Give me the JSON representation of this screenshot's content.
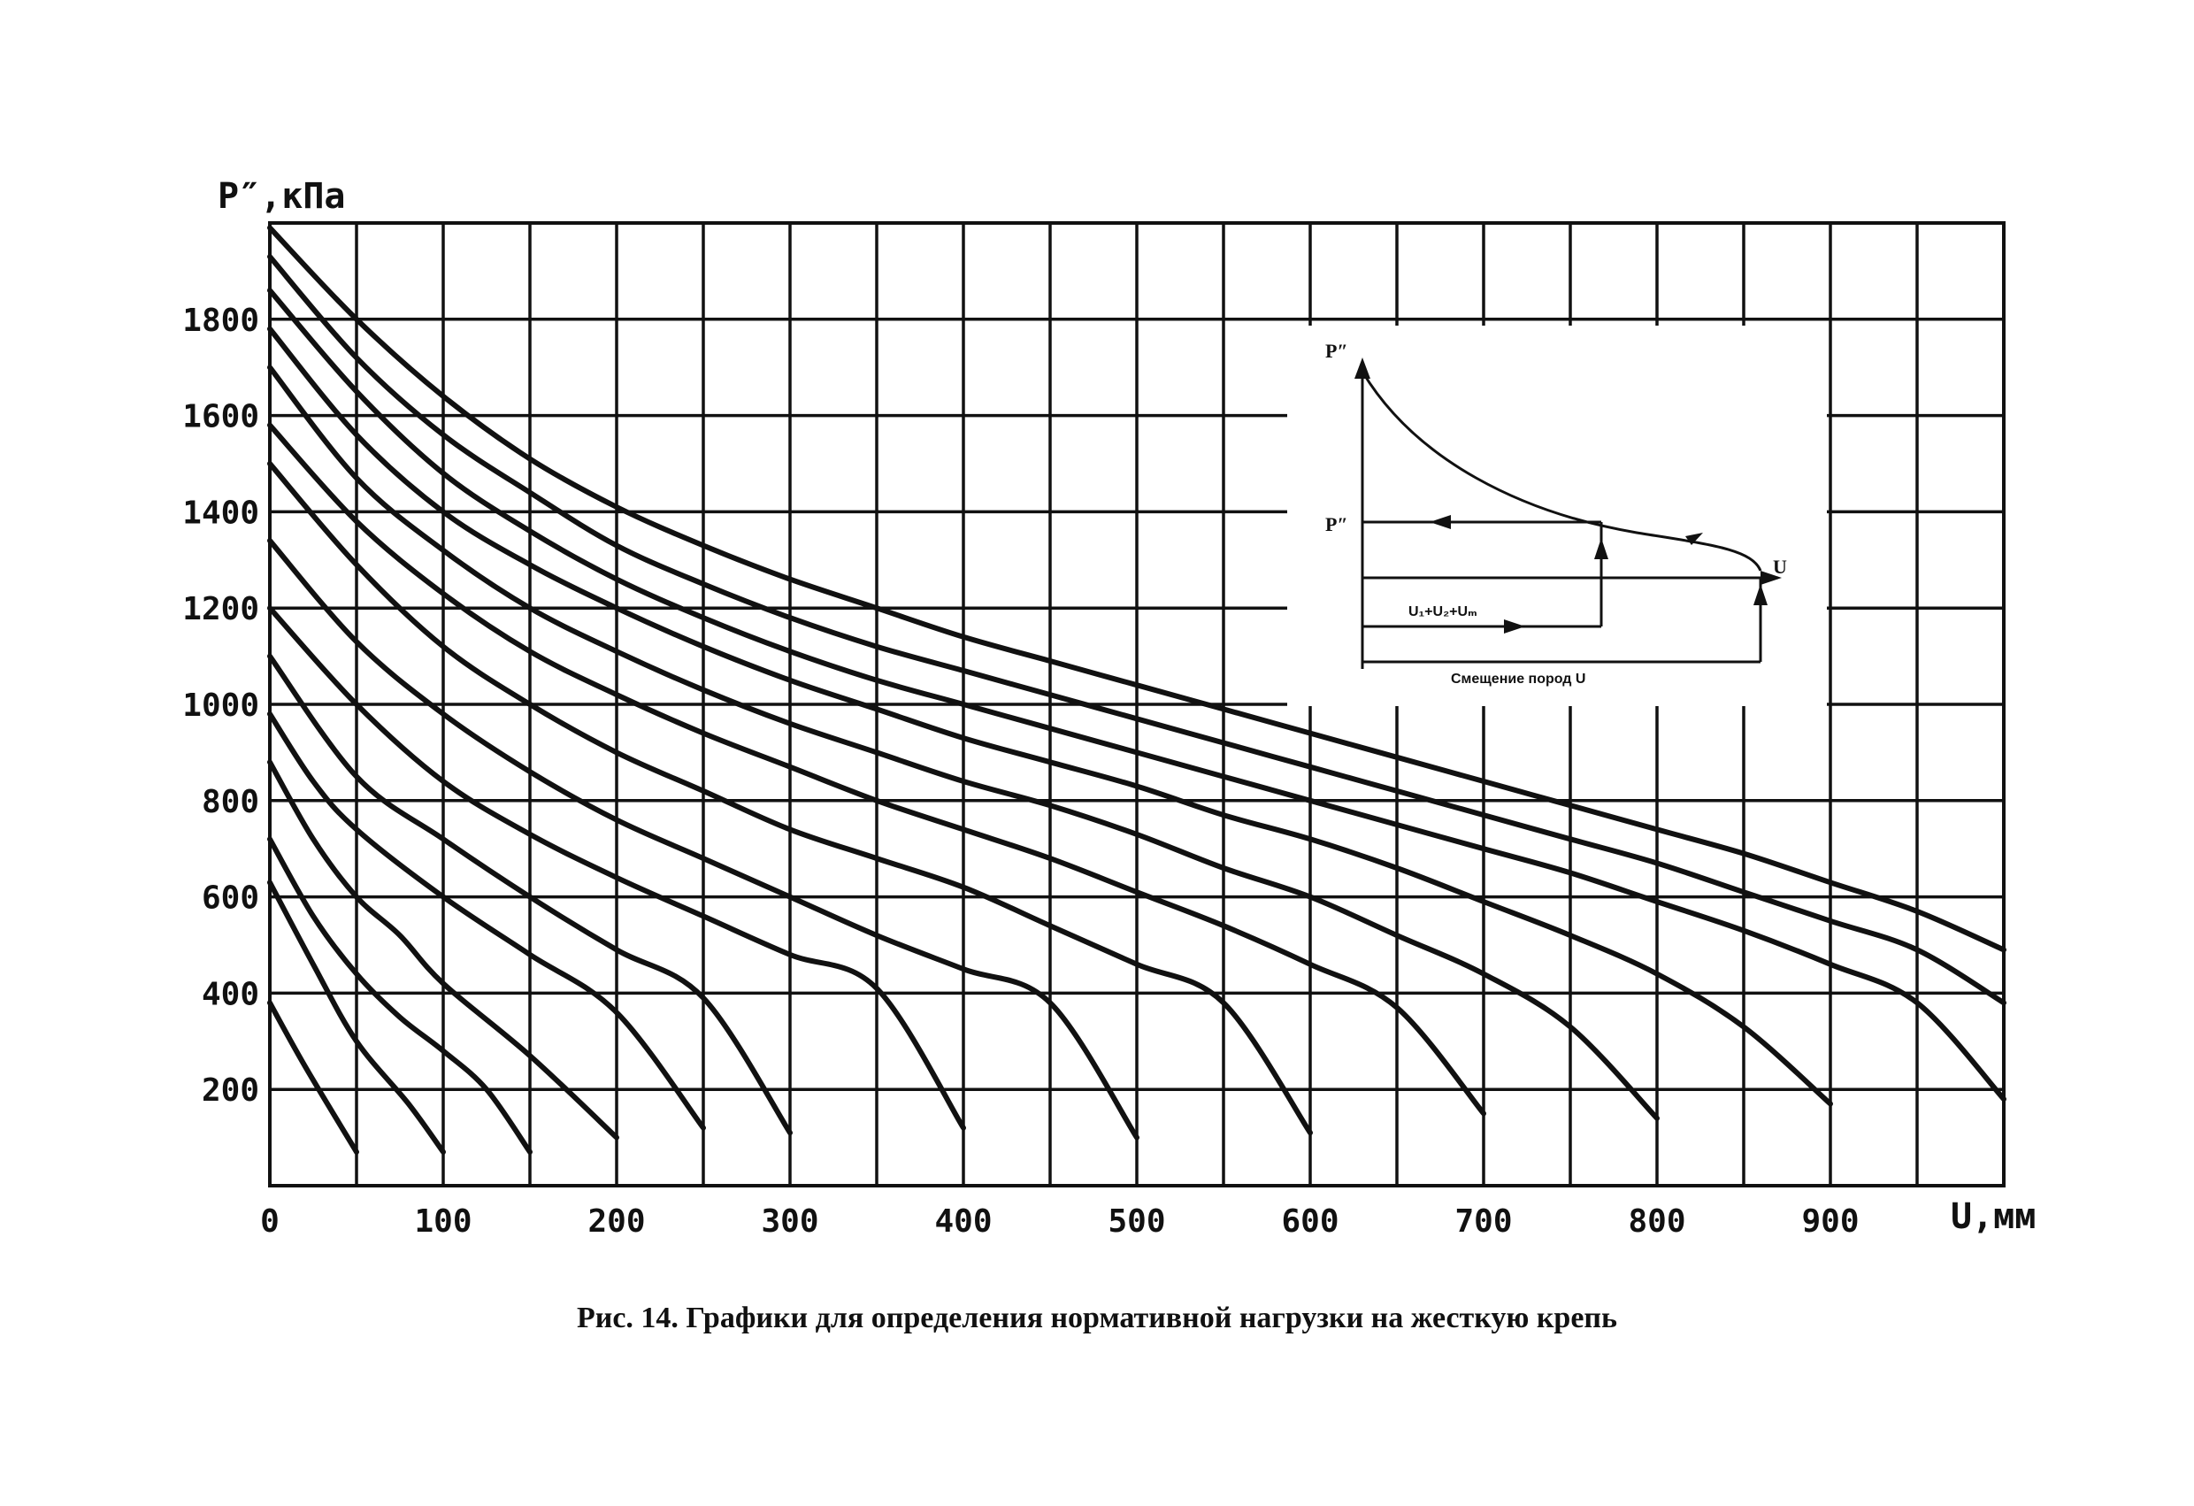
{
  "chart_data": {
    "type": "line",
    "title": "",
    "xlabel": "U,мм",
    "ylabel": "Р″,кПа",
    "xlim": [
      0,
      1000
    ],
    "ylim": [
      0,
      2000
    ],
    "grid": true,
    "x_ticks": [
      "0",
      "100",
      "200",
      "300",
      "400",
      "500",
      "600",
      "700",
      "800",
      "900"
    ],
    "x_tick_values": [
      0,
      100,
      200,
      300,
      400,
      500,
      600,
      700,
      800,
      900
    ],
    "y_ticks": [
      "200",
      "400",
      "600",
      "800",
      "1000",
      "1200",
      "1400",
      "1600",
      "1800"
    ],
    "y_tick_values": [
      200,
      400,
      600,
      800,
      1000,
      1200,
      1400,
      1600,
      1800
    ],
    "series": [
      {
        "points": [
          [
            0,
            380
          ],
          [
            20,
            250
          ],
          [
            50,
            70
          ]
        ]
      },
      {
        "points": [
          [
            0,
            630
          ],
          [
            25,
            460
          ],
          [
            50,
            300
          ],
          [
            80,
            170
          ],
          [
            100,
            70
          ]
        ]
      },
      {
        "points": [
          [
            0,
            720
          ],
          [
            25,
            560
          ],
          [
            50,
            440
          ],
          [
            75,
            350
          ],
          [
            100,
            280
          ],
          [
            125,
            200
          ],
          [
            150,
            70
          ]
        ]
      },
      {
        "points": [
          [
            0,
            880
          ],
          [
            25,
            720
          ],
          [
            50,
            600
          ],
          [
            75,
            520
          ],
          [
            100,
            420
          ],
          [
            150,
            270
          ],
          [
            200,
            100
          ]
        ]
      },
      {
        "points": [
          [
            0,
            980
          ],
          [
            25,
            840
          ],
          [
            50,
            740
          ],
          [
            100,
            600
          ],
          [
            150,
            480
          ],
          [
            200,
            360
          ],
          [
            250,
            120
          ]
        ]
      },
      {
        "points": [
          [
            0,
            1100
          ],
          [
            50,
            850
          ],
          [
            100,
            720
          ],
          [
            150,
            600
          ],
          [
            200,
            490
          ],
          [
            250,
            390
          ],
          [
            300,
            110
          ]
        ]
      },
      {
        "points": [
          [
            0,
            1200
          ],
          [
            50,
            1000
          ],
          [
            100,
            840
          ],
          [
            150,
            730
          ],
          [
            200,
            640
          ],
          [
            250,
            560
          ],
          [
            300,
            480
          ],
          [
            350,
            410
          ],
          [
            400,
            120
          ]
        ]
      },
      {
        "points": [
          [
            0,
            1340
          ],
          [
            50,
            1130
          ],
          [
            100,
            980
          ],
          [
            150,
            860
          ],
          [
            200,
            760
          ],
          [
            250,
            680
          ],
          [
            300,
            600
          ],
          [
            350,
            520
          ],
          [
            400,
            450
          ],
          [
            450,
            380
          ],
          [
            500,
            100
          ]
        ]
      },
      {
        "points": [
          [
            0,
            1500
          ],
          [
            50,
            1290
          ],
          [
            100,
            1120
          ],
          [
            150,
            1000
          ],
          [
            200,
            900
          ],
          [
            250,
            820
          ],
          [
            300,
            740
          ],
          [
            350,
            680
          ],
          [
            400,
            620
          ],
          [
            450,
            540
          ],
          [
            500,
            460
          ],
          [
            550,
            380
          ],
          [
            600,
            110
          ]
        ]
      },
      {
        "points": [
          [
            0,
            1580
          ],
          [
            50,
            1380
          ],
          [
            100,
            1230
          ],
          [
            150,
            1110
          ],
          [
            200,
            1020
          ],
          [
            250,
            940
          ],
          [
            300,
            870
          ],
          [
            350,
            800
          ],
          [
            400,
            740
          ],
          [
            450,
            680
          ],
          [
            500,
            610
          ],
          [
            550,
            540
          ],
          [
            600,
            460
          ],
          [
            650,
            370
          ],
          [
            700,
            150
          ]
        ]
      },
      {
        "points": [
          [
            0,
            1700
          ],
          [
            50,
            1470
          ],
          [
            100,
            1320
          ],
          [
            150,
            1200
          ],
          [
            200,
            1110
          ],
          [
            250,
            1030
          ],
          [
            300,
            960
          ],
          [
            350,
            900
          ],
          [
            400,
            840
          ],
          [
            450,
            790
          ],
          [
            500,
            730
          ],
          [
            550,
            660
          ],
          [
            600,
            600
          ],
          [
            650,
            520
          ],
          [
            700,
            440
          ],
          [
            750,
            330
          ],
          [
            800,
            140
          ]
        ]
      },
      {
        "points": [
          [
            0,
            1780
          ],
          [
            50,
            1560
          ],
          [
            100,
            1400
          ],
          [
            150,
            1290
          ],
          [
            200,
            1200
          ],
          [
            250,
            1120
          ],
          [
            300,
            1050
          ],
          [
            350,
            990
          ],
          [
            400,
            930
          ],
          [
            450,
            880
          ],
          [
            500,
            830
          ],
          [
            550,
            770
          ],
          [
            600,
            720
          ],
          [
            650,
            660
          ],
          [
            700,
            590
          ],
          [
            750,
            520
          ],
          [
            800,
            440
          ],
          [
            850,
            330
          ],
          [
            900,
            170
          ]
        ]
      },
      {
        "points": [
          [
            0,
            1860
          ],
          [
            50,
            1650
          ],
          [
            100,
            1480
          ],
          [
            150,
            1360
          ],
          [
            200,
            1260
          ],
          [
            250,
            1180
          ],
          [
            300,
            1110
          ],
          [
            350,
            1050
          ],
          [
            400,
            1000
          ],
          [
            450,
            950
          ],
          [
            500,
            900
          ],
          [
            550,
            850
          ],
          [
            600,
            800
          ],
          [
            650,
            750
          ],
          [
            700,
            700
          ],
          [
            750,
            650
          ],
          [
            800,
            590
          ],
          [
            850,
            530
          ],
          [
            900,
            460
          ],
          [
            950,
            380
          ],
          [
            1000,
            180
          ]
        ]
      },
      {
        "points": [
          [
            0,
            1930
          ],
          [
            50,
            1720
          ],
          [
            100,
            1560
          ],
          [
            150,
            1440
          ],
          [
            200,
            1330
          ],
          [
            250,
            1250
          ],
          [
            300,
            1180
          ],
          [
            350,
            1120
          ],
          [
            400,
            1070
          ],
          [
            450,
            1020
          ],
          [
            500,
            970
          ],
          [
            550,
            920
          ],
          [
            600,
            870
          ],
          [
            650,
            820
          ],
          [
            700,
            770
          ],
          [
            750,
            720
          ],
          [
            800,
            670
          ],
          [
            850,
            610
          ],
          [
            900,
            550
          ],
          [
            950,
            490
          ],
          [
            1000,
            380
          ]
        ]
      },
      {
        "points": [
          [
            0,
            1990
          ],
          [
            50,
            1800
          ],
          [
            100,
            1640
          ],
          [
            150,
            1510
          ],
          [
            200,
            1410
          ],
          [
            250,
            1330
          ],
          [
            300,
            1260
          ],
          [
            350,
            1200
          ],
          [
            400,
            1140
          ],
          [
            450,
            1090
          ],
          [
            500,
            1040
          ],
          [
            550,
            990
          ],
          [
            600,
            940
          ],
          [
            650,
            890
          ],
          [
            700,
            840
          ],
          [
            750,
            790
          ],
          [
            800,
            740
          ],
          [
            850,
            690
          ],
          [
            900,
            630
          ],
          [
            950,
            570
          ],
          [
            1000,
            490
          ]
        ]
      }
    ]
  },
  "inset": {
    "y_axis_label": "Р″",
    "load_label": "Р″",
    "x_axis_label": "U",
    "sum_label": "U₁+U₂+Uₘ",
    "bottom_label": "Смещение пород U"
  },
  "caption": "Рис. 14. Графики для определения нормативной нагрузки на жесткую крепь"
}
